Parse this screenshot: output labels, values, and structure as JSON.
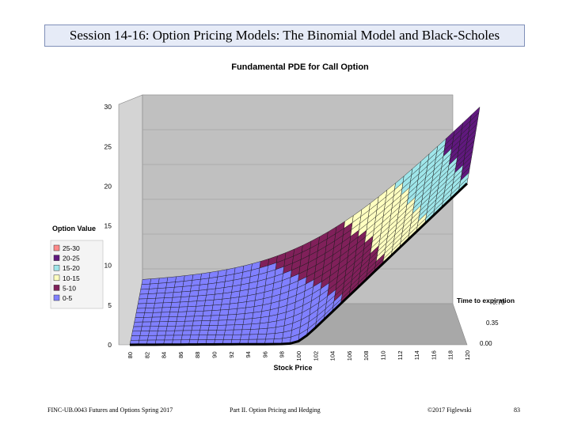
{
  "slide": {
    "title": "Session 14-16:  Option Pricing Models:  The Binomial Model and Black-Scholes"
  },
  "footer": {
    "course": "FINC-UB.0043  Futures and Options  Spring 2017",
    "part": "Part II. Option Pricing and Hedging",
    "copyright": "©2017 Figlewski",
    "page": "83"
  },
  "colors": {
    "band_0_5": "#8080ff",
    "band_5_10": "#80205a",
    "band_10_15": "#ffffc0",
    "band_15_20": "#9fe6ea",
    "band_20_25": "#60187e",
    "band_25_30": "#ff8a8a",
    "wall": "#c0c0c0",
    "floor": "#a8a8a8"
  },
  "chart_data": {
    "type": "surface",
    "title": "Fundamental PDE for Call Option",
    "zlabel": "Option Value",
    "xlabel": "Stock Price",
    "ylabel": "Time to expiration",
    "zlim": [
      0,
      30
    ],
    "z_ticks": [
      "0",
      "5",
      "10",
      "15",
      "20",
      "25",
      "30"
    ],
    "x_ticks": [
      "80",
      "82",
      "84",
      "86",
      "88",
      "90",
      "92",
      "94",
      "96",
      "98",
      "100",
      "102",
      "104",
      "106",
      "108",
      "110",
      "112",
      "114",
      "116",
      "118",
      "120"
    ],
    "y_ticks": [
      "0.00",
      "0.35",
      "0.70"
    ],
    "stock_price_range": [
      80,
      120
    ],
    "time_range": [
      0,
      0.7
    ],
    "grid": true,
    "legend": {
      "placement": "left",
      "entries": [
        "25-30",
        "20-25",
        "15-20",
        "10-15",
        "5-10",
        "0-5"
      ]
    },
    "surface_bands": [
      {
        "name": "0-5",
        "range": [
          0,
          5
        ]
      },
      {
        "name": "5-10",
        "range": [
          5,
          10
        ]
      },
      {
        "name": "10-15",
        "range": [
          10,
          15
        ]
      },
      {
        "name": "15-20",
        "range": [
          15,
          20
        ]
      },
      {
        "name": "20-25",
        "range": [
          20,
          25
        ]
      },
      {
        "name": "25-30",
        "range": [
          25,
          30
        ]
      }
    ],
    "option_value_at_expiration": [
      {
        "x": 80,
        "z": 0
      },
      {
        "x": 100,
        "z": 0
      },
      {
        "x": 120,
        "z": 20
      }
    ],
    "option_value_at_max_time": [
      {
        "x": 80,
        "z": 1
      },
      {
        "x": 100,
        "z": 9
      },
      {
        "x": 120,
        "z": 26
      }
    ]
  }
}
